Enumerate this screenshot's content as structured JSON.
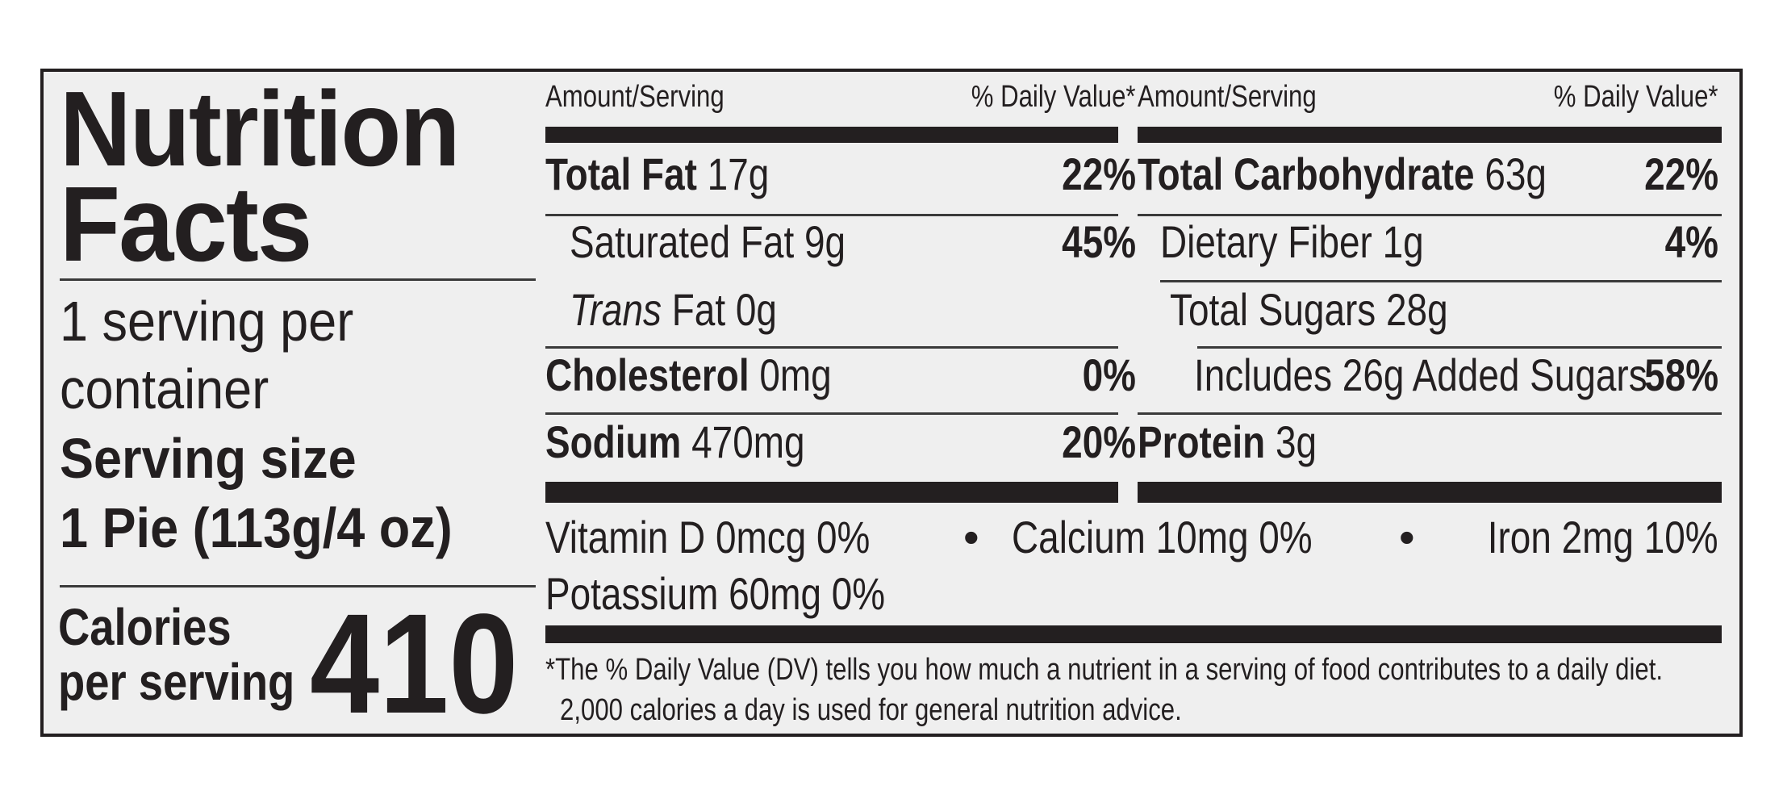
{
  "title_line1": "Nutrition",
  "title_line2": "Facts",
  "servings_line1": "1 serving per",
  "servings_line2": "container",
  "serving_size_label": "Serving size",
  "serving_size_value": "1 Pie (113g/4 oz)",
  "calories_label_line1": "Calories",
  "calories_label_line2": "per serving",
  "calories_value": "410",
  "left_column": {
    "amount_header": "Amount/Serving",
    "dv_header": "% Daily Value*",
    "rows": [
      {
        "name": "Total Fat",
        "amount": "17g",
        "dv": "22%"
      },
      {
        "name": "Saturated Fat",
        "amount": "9g",
        "dv": "45%"
      },
      {
        "name_italic": "Trans",
        "name": "Fat",
        "amount": "0g"
      },
      {
        "name": "Cholesterol",
        "amount": "0mg",
        "dv": "0%"
      },
      {
        "name": "Sodium",
        "amount": "470mg",
        "dv": "20%"
      }
    ]
  },
  "right_column": {
    "amount_header": "Amount/Serving",
    "dv_header": "% Daily Value*",
    "rows": [
      {
        "name": "Total Carbohydrate",
        "amount": "63g",
        "dv": "22%"
      },
      {
        "name": "Dietary Fiber",
        "amount": "1g",
        "dv": "4%"
      },
      {
        "name": "Total Sugars",
        "amount": "28g"
      },
      {
        "name": "Includes 26g Added Sugars",
        "dv": "58%"
      },
      {
        "name": "Protein",
        "amount": "3g"
      }
    ]
  },
  "vitamins": {
    "vitamin_d": "Vitamin D 0mcg 0%",
    "calcium": "Calcium 10mg 0%",
    "iron": "Iron 2mg 10%",
    "potassium": "Potassium 60mg 0%",
    "separator": "•"
  },
  "footnote_line1": "*The % Daily Value (DV) tells you how much a nutrient in a serving of food contributes to a daily diet.",
  "footnote_line2": "2,000 calories a day is used for general nutrition advice."
}
